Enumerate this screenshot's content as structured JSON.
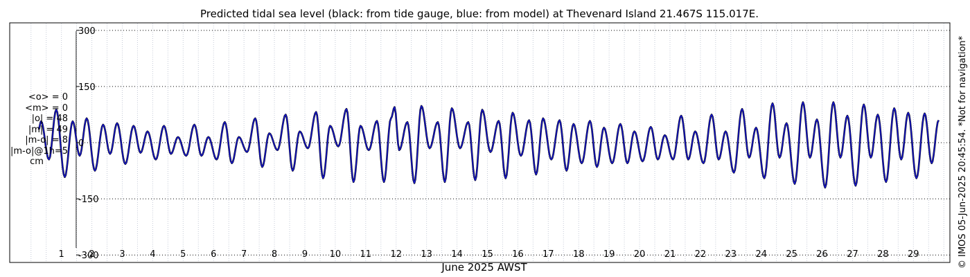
{
  "chart_data": {
    "type": "line",
    "title": "Predicted tidal sea level (black: from tide gauge, blue: from model) at Thevenard Island 21.467S 115.017E.",
    "xlabel": "June 2025 AWST",
    "ylabel": "",
    "xlim": [
      -0.7,
      30.2
    ],
    "ylim": [
      -320,
      320
    ],
    "yticks": [
      300,
      150,
      0,
      -150,
      -300
    ],
    "xticks": [
      "1",
      "2",
      "3",
      "4",
      "5",
      "6",
      "7",
      "8",
      "9",
      "10",
      "11",
      "12",
      "13",
      "14",
      "15",
      "16",
      "17",
      "18",
      "19",
      "20",
      "21",
      "22",
      "23",
      "24",
      "25",
      "26",
      "27",
      "28",
      "29"
    ],
    "grid": "dotted",
    "series": [
      {
        "name": "tide gauge",
        "color": "#000000",
        "extrema": [
          [
            0.25,
            35
          ],
          [
            0.33,
            57
          ],
          [
            0.59,
            -45
          ],
          [
            0.83,
            88
          ],
          [
            1.11,
            -92
          ],
          [
            1.37,
            57
          ],
          [
            1.6,
            -35
          ],
          [
            1.83,
            65
          ],
          [
            2.1,
            -75
          ],
          [
            2.37,
            48
          ],
          [
            2.6,
            -30
          ],
          [
            2.83,
            52
          ],
          [
            3.1,
            -57
          ],
          [
            3.37,
            45
          ],
          [
            3.6,
            -27
          ],
          [
            3.83,
            30
          ],
          [
            4.1,
            -45
          ],
          [
            4.37,
            45
          ],
          [
            4.6,
            -30
          ],
          [
            4.83,
            15
          ],
          [
            5.1,
            -35
          ],
          [
            5.37,
            48
          ],
          [
            5.6,
            -35
          ],
          [
            5.83,
            15
          ],
          [
            6.1,
            -45
          ],
          [
            6.37,
            55
          ],
          [
            6.6,
            -55
          ],
          [
            6.83,
            15
          ],
          [
            7.1,
            -25
          ],
          [
            7.37,
            65
          ],
          [
            7.6,
            -65
          ],
          [
            7.83,
            25
          ],
          [
            8.1,
            -20
          ],
          [
            8.37,
            75
          ],
          [
            8.6,
            -75
          ],
          [
            8.83,
            30
          ],
          [
            9.1,
            -15
          ],
          [
            9.37,
            82
          ],
          [
            9.6,
            -95
          ],
          [
            9.83,
            45
          ],
          [
            10.1,
            -10
          ],
          [
            10.37,
            90
          ],
          [
            10.6,
            -105
          ],
          [
            10.83,
            45
          ],
          [
            11.1,
            -20
          ],
          [
            11.37,
            58
          ],
          [
            11.6,
            -105
          ],
          [
            11.83,
            65
          ],
          [
            11.95,
            95
          ],
          [
            12.1,
            -20
          ],
          [
            12.37,
            55
          ],
          [
            12.6,
            -108
          ],
          [
            12.83,
            98
          ],
          [
            13.1,
            -15
          ],
          [
            13.37,
            55
          ],
          [
            13.6,
            -105
          ],
          [
            13.83,
            92
          ],
          [
            14.1,
            -15
          ],
          [
            14.37,
            55
          ],
          [
            14.6,
            -100
          ],
          [
            14.83,
            88
          ],
          [
            15.1,
            -25
          ],
          [
            15.37,
            58
          ],
          [
            15.6,
            -95
          ],
          [
            15.83,
            80
          ],
          [
            16.1,
            -35
          ],
          [
            16.37,
            60
          ],
          [
            16.6,
            -85
          ],
          [
            16.83,
            65
          ],
          [
            17.1,
            -45
          ],
          [
            17.37,
            60
          ],
          [
            17.6,
            -75
          ],
          [
            17.83,
            50
          ],
          [
            18.1,
            -55
          ],
          [
            18.37,
            58
          ],
          [
            18.6,
            -65
          ],
          [
            18.83,
            40
          ],
          [
            19.1,
            -55
          ],
          [
            19.37,
            50
          ],
          [
            19.6,
            -55
          ],
          [
            19.83,
            30
          ],
          [
            20.1,
            -50
          ],
          [
            20.37,
            42
          ],
          [
            20.6,
            -45
          ],
          [
            20.83,
            20
          ],
          [
            21.1,
            -45
          ],
          [
            21.37,
            72
          ],
          [
            21.6,
            -45
          ],
          [
            21.83,
            30
          ],
          [
            22.1,
            -55
          ],
          [
            22.37,
            75
          ],
          [
            22.6,
            -45
          ],
          [
            22.83,
            30
          ],
          [
            23.1,
            -80
          ],
          [
            23.37,
            90
          ],
          [
            23.6,
            -40
          ],
          [
            23.83,
            40
          ],
          [
            24.1,
            -95
          ],
          [
            24.37,
            105
          ],
          [
            24.6,
            -40
          ],
          [
            24.83,
            52
          ],
          [
            25.1,
            -110
          ],
          [
            25.37,
            108
          ],
          [
            25.6,
            -40
          ],
          [
            25.83,
            62
          ],
          [
            26.1,
            -120
          ],
          [
            26.37,
            108
          ],
          [
            26.6,
            -40
          ],
          [
            26.83,
            72
          ],
          [
            27.1,
            -115
          ],
          [
            27.37,
            102
          ],
          [
            27.6,
            -40
          ],
          [
            27.83,
            75
          ],
          [
            28.1,
            -105
          ],
          [
            28.37,
            92
          ],
          [
            28.6,
            -45
          ],
          [
            28.83,
            80
          ],
          [
            29.1,
            -95
          ],
          [
            29.37,
            78
          ],
          [
            29.6,
            -55
          ],
          [
            29.83,
            60
          ]
        ]
      },
      {
        "name": "model",
        "color": "#1515c8",
        "extrema": [
          [
            0.25,
            35
          ],
          [
            0.33,
            57
          ],
          [
            0.59,
            -45
          ],
          [
            0.83,
            88
          ],
          [
            1.11,
            -92
          ],
          [
            1.37,
            57
          ],
          [
            1.6,
            -35
          ],
          [
            1.83,
            65
          ],
          [
            2.1,
            -75
          ],
          [
            2.37,
            48
          ],
          [
            2.6,
            -30
          ],
          [
            2.83,
            52
          ],
          [
            3.1,
            -57
          ],
          [
            3.37,
            45
          ],
          [
            3.6,
            -27
          ],
          [
            3.83,
            30
          ],
          [
            4.1,
            -45
          ],
          [
            4.37,
            45
          ],
          [
            4.6,
            -30
          ],
          [
            4.83,
            15
          ],
          [
            5.1,
            -35
          ],
          [
            5.37,
            48
          ],
          [
            5.6,
            -35
          ],
          [
            5.83,
            15
          ],
          [
            6.1,
            -45
          ],
          [
            6.37,
            55
          ],
          [
            6.6,
            -55
          ],
          [
            6.83,
            15
          ],
          [
            7.1,
            -25
          ],
          [
            7.37,
            65
          ],
          [
            7.6,
            -65
          ],
          [
            7.83,
            25
          ],
          [
            8.1,
            -20
          ],
          [
            8.37,
            75
          ],
          [
            8.6,
            -75
          ],
          [
            8.83,
            30
          ],
          [
            9.1,
            -15
          ],
          [
            9.37,
            82
          ],
          [
            9.6,
            -95
          ],
          [
            9.83,
            45
          ],
          [
            10.1,
            -10
          ],
          [
            10.37,
            90
          ],
          [
            10.6,
            -105
          ],
          [
            10.83,
            45
          ],
          [
            11.1,
            -20
          ],
          [
            11.37,
            58
          ],
          [
            11.6,
            -105
          ],
          [
            11.83,
            65
          ],
          [
            11.95,
            95
          ],
          [
            12.1,
            -20
          ],
          [
            12.37,
            55
          ],
          [
            12.6,
            -108
          ],
          [
            12.83,
            98
          ],
          [
            13.1,
            -15
          ],
          [
            13.37,
            55
          ],
          [
            13.6,
            -105
          ],
          [
            13.83,
            92
          ],
          [
            14.1,
            -15
          ],
          [
            14.37,
            55
          ],
          [
            14.6,
            -100
          ],
          [
            14.83,
            88
          ],
          [
            15.1,
            -25
          ],
          [
            15.37,
            58
          ],
          [
            15.6,
            -95
          ],
          [
            15.83,
            80
          ],
          [
            16.1,
            -35
          ],
          [
            16.37,
            60
          ],
          [
            16.6,
            -85
          ],
          [
            16.83,
            65
          ],
          [
            17.1,
            -45
          ],
          [
            17.37,
            60
          ],
          [
            17.6,
            -75
          ],
          [
            17.83,
            50
          ],
          [
            18.1,
            -55
          ],
          [
            18.37,
            58
          ],
          [
            18.6,
            -65
          ],
          [
            18.83,
            40
          ],
          [
            19.1,
            -55
          ],
          [
            19.37,
            50
          ],
          [
            19.6,
            -55
          ],
          [
            19.83,
            30
          ],
          [
            20.1,
            -50
          ],
          [
            20.37,
            42
          ],
          [
            20.6,
            -45
          ],
          [
            20.83,
            20
          ],
          [
            21.1,
            -45
          ],
          [
            21.37,
            72
          ],
          [
            21.6,
            -45
          ],
          [
            21.83,
            30
          ],
          [
            22.1,
            -55
          ],
          [
            22.37,
            75
          ],
          [
            22.6,
            -45
          ],
          [
            22.83,
            30
          ],
          [
            23.1,
            -80
          ],
          [
            23.37,
            90
          ],
          [
            23.6,
            -40
          ],
          [
            23.83,
            40
          ],
          [
            24.1,
            -95
          ],
          [
            24.37,
            105
          ],
          [
            24.6,
            -40
          ],
          [
            24.83,
            52
          ],
          [
            25.1,
            -110
          ],
          [
            25.37,
            108
          ],
          [
            25.6,
            -40
          ],
          [
            25.83,
            62
          ],
          [
            26.1,
            -120
          ],
          [
            26.37,
            108
          ],
          [
            26.6,
            -40
          ],
          [
            26.83,
            72
          ],
          [
            27.1,
            -115
          ],
          [
            27.37,
            102
          ],
          [
            27.6,
            -40
          ],
          [
            27.83,
            75
          ],
          [
            28.1,
            -105
          ],
          [
            28.37,
            92
          ],
          [
            28.6,
            -45
          ],
          [
            28.83,
            80
          ],
          [
            29.1,
            -95
          ],
          [
            29.37,
            78
          ],
          [
            29.6,
            -55
          ],
          [
            29.83,
            60
          ]
        ]
      }
    ]
  },
  "stats": {
    "mean_obs": "<o> = 0",
    "mean_model": "<m> = 0",
    "abs_obs": "|o| = 48",
    "abs_model": "|m| = 49",
    "abs_diff": "|m-o| = 8",
    "abs_diff_1h": "|m-o|@1h=5",
    "unit": "cm"
  },
  "credit": "© IMOS 05-Jun-2025 20:45:54. *Not for navigation*"
}
